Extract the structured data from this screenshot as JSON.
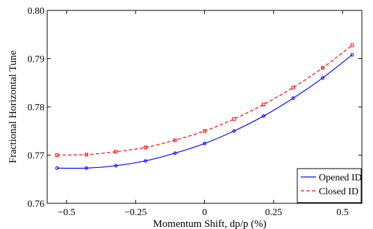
{
  "chart_data": {
    "type": "line",
    "title": "",
    "xlabel": "Momentum Shift, dp/p (%)",
    "ylabel": "Fractional Horizontal Tune",
    "xlim": [
      -0.57,
      0.57
    ],
    "ylim": [
      0.76,
      0.8
    ],
    "x_ticks": [
      -0.5,
      -0.25,
      0,
      0.25,
      0.5
    ],
    "x_tick_labels": [
      "−0.5",
      "−0.25",
      "0",
      "0.25",
      "0.5"
    ],
    "y_ticks": [
      0.76,
      0.77,
      0.78,
      0.79,
      0.8
    ],
    "y_tick_labels": [
      "0.76",
      "0.77",
      "0.78",
      "0.79",
      "0.80"
    ],
    "grid": false,
    "legend_position": "bottom-right",
    "series": [
      {
        "name": "Opened ID",
        "color": "#0000ff",
        "line_style": "solid",
        "marker": "circle",
        "x": [
          -0.535,
          -0.428,
          -0.321,
          -0.214,
          -0.107,
          0.0,
          0.107,
          0.214,
          0.321,
          0.428,
          0.535
        ],
        "y": [
          0.7673,
          0.7673,
          0.7678,
          0.7688,
          0.7704,
          0.7724,
          0.775,
          0.7781,
          0.7818,
          0.786,
          0.7908
        ]
      },
      {
        "name": "Closed ID",
        "color": "#ff0000",
        "line_style": "dashed",
        "marker": "square",
        "x": [
          -0.535,
          -0.428,
          -0.321,
          -0.214,
          -0.107,
          0.0,
          0.107,
          0.214,
          0.321,
          0.428,
          0.535
        ],
        "y": [
          0.77,
          0.7701,
          0.7707,
          0.7716,
          0.7731,
          0.775,
          0.7775,
          0.7805,
          0.784,
          0.7881,
          0.7928
        ]
      }
    ]
  }
}
